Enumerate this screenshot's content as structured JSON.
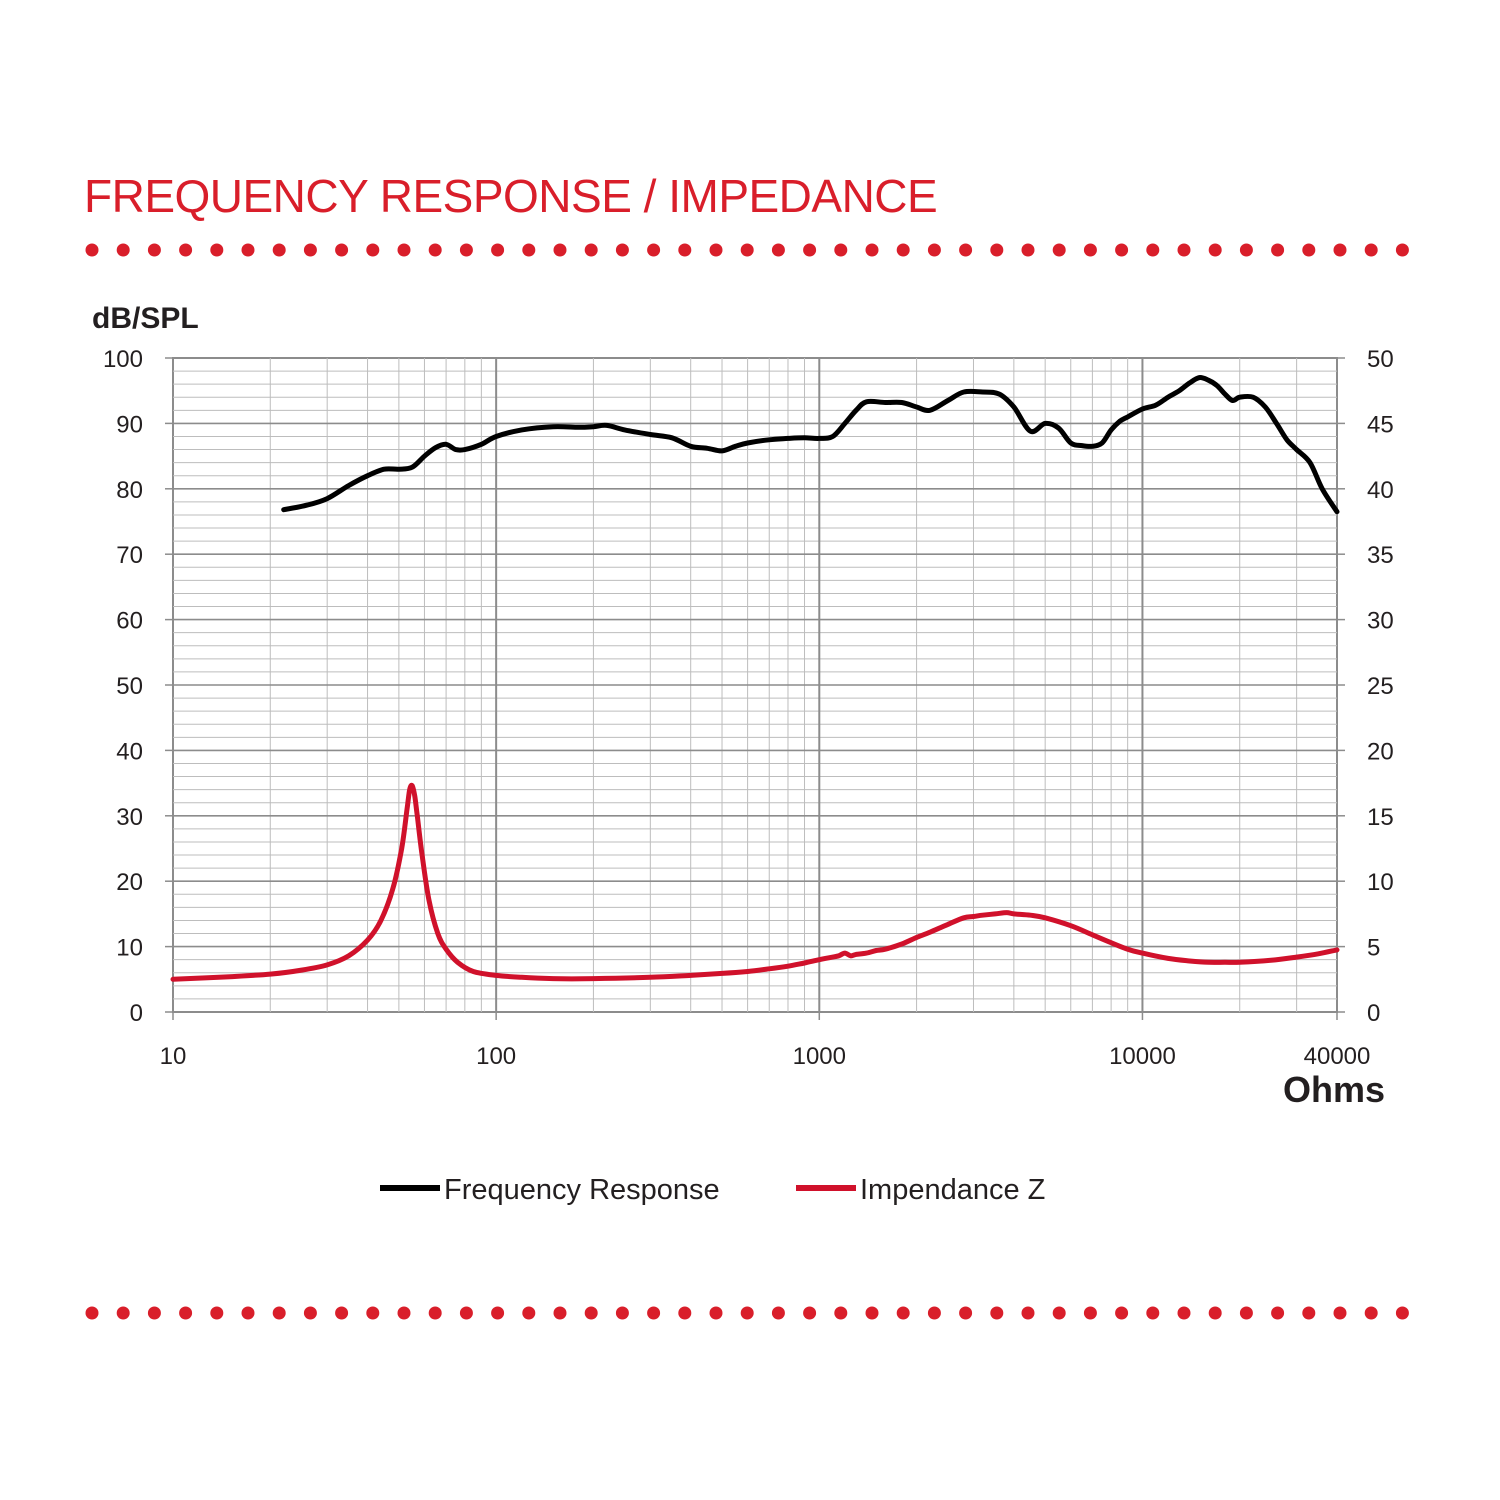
{
  "colors": {
    "accent": "#d91e2a",
    "frequency": "#000000",
    "impedance": "#d0112b",
    "grid_minor": "#bdbdbd",
    "grid_major": "#8c8c8c",
    "text": "#231f20"
  },
  "chart_data": {
    "type": "line",
    "title": "FREQUENCY RESPONSE / IMPEDANCE",
    "ylabel": "dB/SPL",
    "y2label": "Ohms",
    "xscale": "log",
    "xlim": [
      10,
      40000
    ],
    "ylim": [
      0,
      100
    ],
    "y2lim": [
      0,
      50
    ],
    "grid": true,
    "legend_position": "bottom-center",
    "x_ticks": [
      "10",
      "100",
      "1000",
      "10000",
      "40000"
    ],
    "x_tick_values": [
      10,
      100,
      1000,
      10000,
      40000
    ],
    "y_ticks": [
      "0",
      "10",
      "20",
      "30",
      "40",
      "50",
      "60",
      "70",
      "80",
      "90",
      "100"
    ],
    "y2_ticks": [
      "0",
      "5",
      "10",
      "15",
      "20",
      "25",
      "30",
      "35",
      "40",
      "45",
      "50"
    ],
    "series": [
      {
        "name": "Frequency Response",
        "axis": "left",
        "x": [
          22,
          26,
          30,
          35,
          40,
          45,
          50,
          55,
          60,
          65,
          70,
          75,
          80,
          90,
          100,
          120,
          150,
          180,
          200,
          220,
          250,
          300,
          350,
          400,
          450,
          500,
          550,
          600,
          700,
          800,
          900,
          1000,
          1100,
          1200,
          1300,
          1400,
          1600,
          1800,
          2000,
          2200,
          2500,
          2800,
          3200,
          3600,
          4000,
          4500,
          5000,
          5500,
          6000,
          6500,
          7000,
          7500,
          8000,
          8500,
          9000,
          10000,
          11000,
          12000,
          13000,
          14000,
          15000,
          16000,
          17000,
          18000,
          19000,
          20000,
          22000,
          24000,
          26000,
          28000,
          30000,
          33000,
          36000,
          40000
        ],
        "values": [
          76.8,
          77.5,
          78.5,
          80.5,
          82,
          83,
          83,
          83.3,
          85,
          86.3,
          86.8,
          86,
          86,
          86.8,
          88,
          89,
          89.5,
          89.4,
          89.5,
          89.7,
          89,
          88.3,
          87.8,
          86.5,
          86.2,
          85.8,
          86.5,
          87.0,
          87.5,
          87.7,
          87.8,
          87.7,
          88,
          90,
          92,
          93.3,
          93.2,
          93.2,
          92.5,
          92.0,
          93.5,
          94.8,
          94.8,
          94.5,
          92.5,
          88.8,
          90.0,
          89.3,
          87.0,
          86.6,
          86.5,
          87.0,
          89.0,
          90.3,
          91.0,
          92.2,
          92.8,
          94.0,
          95.0,
          96.2,
          97.0,
          96.6,
          95.8,
          94.5,
          93.5,
          94.0,
          94.0,
          92.5,
          90.0,
          87.5,
          86.0,
          84.0,
          80.0,
          76.5
        ]
      },
      {
        "name": "Impendance Z",
        "axis": "right",
        "x": [
          10,
          15,
          20,
          25,
          30,
          35,
          40,
          44,
          48,
          51,
          53,
          54,
          55,
          56,
          57,
          59,
          62,
          66,
          70,
          76,
          85,
          100,
          120,
          150,
          200,
          300,
          400,
          500,
          600,
          700,
          800,
          900,
          1000,
          1100,
          1150,
          1200,
          1250,
          1300,
          1400,
          1500,
          1600,
          1800,
          2000,
          2200,
          2500,
          2800,
          3000,
          3200,
          3500,
          3800,
          4000,
          4500,
          5000,
          6000,
          7000,
          8000,
          9000,
          10000,
          12000,
          14000,
          16000,
          18000,
          20000,
          25000,
          30000,
          35000,
          40000
        ],
        "values": [
          2.5,
          2.7,
          2.9,
          3.2,
          3.6,
          4.3,
          5.5,
          7.0,
          9.5,
          12.5,
          15.5,
          17.0,
          17.3,
          16.5,
          15.0,
          12.0,
          8.5,
          6.0,
          4.8,
          3.8,
          3.1,
          2.8,
          2.65,
          2.55,
          2.55,
          2.65,
          2.8,
          2.95,
          3.1,
          3.3,
          3.5,
          3.75,
          4.0,
          4.2,
          4.3,
          4.5,
          4.3,
          4.4,
          4.5,
          4.7,
          4.8,
          5.2,
          5.7,
          6.1,
          6.7,
          7.2,
          7.3,
          7.4,
          7.5,
          7.6,
          7.5,
          7.4,
          7.2,
          6.6,
          5.9,
          5.3,
          4.8,
          4.5,
          4.1,
          3.9,
          3.8,
          3.8,
          3.8,
          3.95,
          4.2,
          4.45,
          4.75
        ]
      }
    ]
  },
  "legend": [
    {
      "label": "Frequency Response",
      "color": "#000000"
    },
    {
      "label": "Impendance Z",
      "color": "#d0112b"
    }
  ]
}
